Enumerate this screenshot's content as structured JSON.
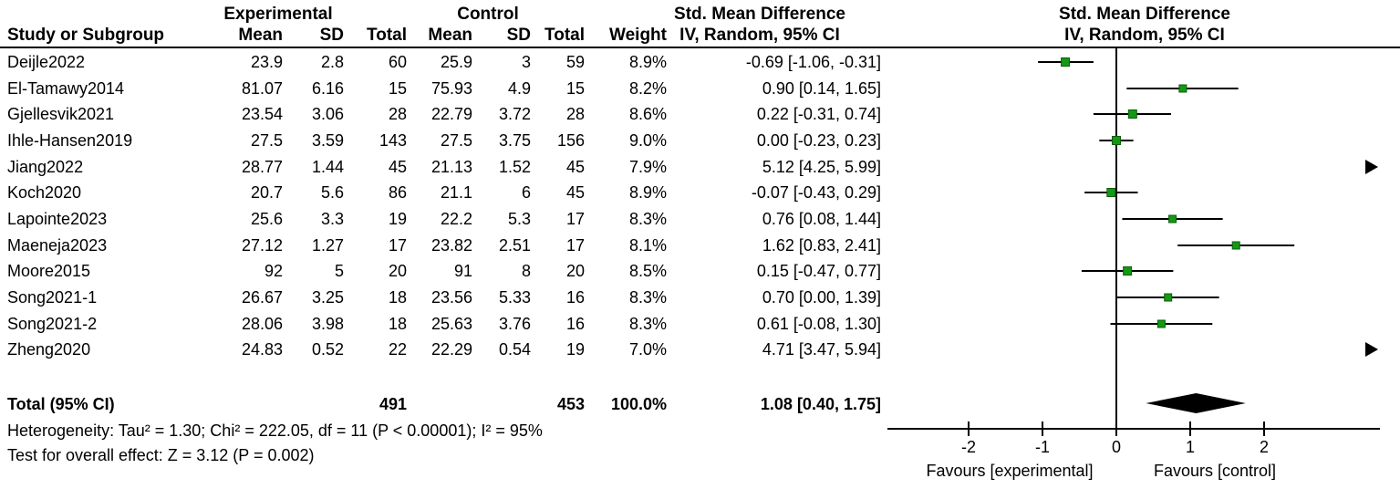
{
  "labels": {
    "experimental": "Experimental",
    "control": "Control",
    "smd": "Std. Mean Difference",
    "method": "IV, Random, 95% CI",
    "study": "Study or Subgroup",
    "mean": "Mean",
    "sd": "SD",
    "total": "Total",
    "weight": "Weight"
  },
  "colors": {
    "marker_fill": "#139913",
    "marker_border": "#0b5e0b",
    "line": "#000000",
    "diamond": "#000000"
  },
  "chart_data": {
    "type": "forest",
    "title": "Std. Mean Difference",
    "model": "IV, Random, 95% CI",
    "studies": [
      {
        "name": "Deijle2022",
        "exp_mean": 23.9,
        "exp_sd": 2.8,
        "exp_total": 60,
        "ctl_mean": 25.9,
        "ctl_sd": 3,
        "ctl_total": 59,
        "weight_pct": 8.9,
        "smd": -0.69,
        "ci": [
          -1.06,
          -0.31
        ]
      },
      {
        "name": "El-Tamawy2014",
        "exp_mean": 81.07,
        "exp_sd": 6.16,
        "exp_total": 15,
        "ctl_mean": 75.93,
        "ctl_sd": 4.9,
        "ctl_total": 15,
        "weight_pct": 8.2,
        "smd": 0.9,
        "ci": [
          0.14,
          1.65
        ]
      },
      {
        "name": "Gjellesvik2021",
        "exp_mean": 23.54,
        "exp_sd": 3.06,
        "exp_total": 28,
        "ctl_mean": 22.79,
        "ctl_sd": 3.72,
        "ctl_total": 28,
        "weight_pct": 8.6,
        "smd": 0.22,
        "ci": [
          -0.31,
          0.74
        ]
      },
      {
        "name": "Ihle-Hansen2019",
        "exp_mean": 27.5,
        "exp_sd": 3.59,
        "exp_total": 143,
        "ctl_mean": 27.5,
        "ctl_sd": 3.75,
        "ctl_total": 156,
        "weight_pct": 9.0,
        "smd": 0.0,
        "ci": [
          -0.23,
          0.23
        ]
      },
      {
        "name": "Jiang2022",
        "exp_mean": 28.77,
        "exp_sd": 1.44,
        "exp_total": 45,
        "ctl_mean": 21.13,
        "ctl_sd": 1.52,
        "ctl_total": 45,
        "weight_pct": 7.9,
        "smd": 5.12,
        "ci": [
          4.25,
          5.99
        ]
      },
      {
        "name": "Koch2020",
        "exp_mean": 20.7,
        "exp_sd": 5.6,
        "exp_total": 86,
        "ctl_mean": 21.1,
        "ctl_sd": 6,
        "ctl_total": 45,
        "weight_pct": 8.9,
        "smd": -0.07,
        "ci": [
          -0.43,
          0.29
        ]
      },
      {
        "name": "Lapointe2023",
        "exp_mean": 25.6,
        "exp_sd": 3.3,
        "exp_total": 19,
        "ctl_mean": 22.2,
        "ctl_sd": 5.3,
        "ctl_total": 17,
        "weight_pct": 8.3,
        "smd": 0.76,
        "ci": [
          0.08,
          1.44
        ]
      },
      {
        "name": "Maeneja2023",
        "exp_mean": 27.12,
        "exp_sd": 1.27,
        "exp_total": 17,
        "ctl_mean": 23.82,
        "ctl_sd": 2.51,
        "ctl_total": 17,
        "weight_pct": 8.1,
        "smd": 1.62,
        "ci": [
          0.83,
          2.41
        ]
      },
      {
        "name": "Moore2015",
        "exp_mean": 92,
        "exp_sd": 5,
        "exp_total": 20,
        "ctl_mean": 91,
        "ctl_sd": 8,
        "ctl_total": 20,
        "weight_pct": 8.5,
        "smd": 0.15,
        "ci": [
          -0.47,
          0.77
        ]
      },
      {
        "name": "Song2021-1",
        "exp_mean": 26.67,
        "exp_sd": 3.25,
        "exp_total": 18,
        "ctl_mean": 23.56,
        "ctl_sd": 5.33,
        "ctl_total": 16,
        "weight_pct": 8.3,
        "smd": 0.7,
        "ci": [
          0.0,
          1.39
        ]
      },
      {
        "name": "Song2021-2",
        "exp_mean": 28.06,
        "exp_sd": 3.98,
        "exp_total": 18,
        "ctl_mean": 25.63,
        "ctl_sd": 3.76,
        "ctl_total": 16,
        "weight_pct": 8.3,
        "smd": 0.61,
        "ci": [
          -0.08,
          1.3
        ]
      },
      {
        "name": "Zheng2020",
        "exp_mean": 24.83,
        "exp_sd": 0.52,
        "exp_total": 22,
        "ctl_mean": 22.29,
        "ctl_sd": 0.54,
        "ctl_total": 19,
        "weight_pct": 7.0,
        "smd": 4.71,
        "ci": [
          3.47,
          5.94
        ]
      }
    ],
    "total": {
      "label": "Total (95% CI)",
      "exp_total": 491,
      "ctl_total": 453,
      "weight_pct": 100.0,
      "smd": 1.08,
      "ci": [
        0.4,
        1.75
      ]
    },
    "heterogeneity": "Heterogeneity: Tau² = 1.30; Chi² = 222.05, df = 11 (P < 0.00001); I² = 95%",
    "overall_effect": "Test for overall effect: Z = 3.12 (P = 0.002)",
    "xaxis": {
      "ticks": [
        -2,
        -1,
        0,
        1,
        2
      ],
      "xlim_shown": [
        -2,
        2
      ],
      "label_left": "Favours [experimental]",
      "label_right": "Favours [control]"
    }
  }
}
